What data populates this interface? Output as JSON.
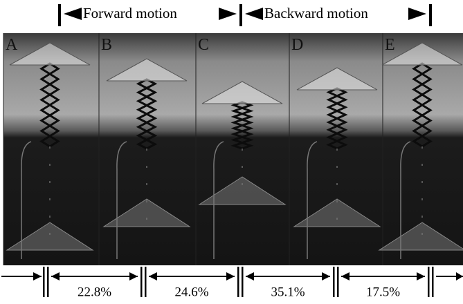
{
  "header": {
    "forward": "Forward  motion",
    "backward": "Backward motion"
  },
  "panels": [
    {
      "label": "A"
    },
    {
      "label": "B"
    },
    {
      "label": "C"
    },
    {
      "label": "D"
    },
    {
      "label": "E"
    }
  ],
  "intervals": [
    "22.8%",
    "24.6%",
    "35.1%",
    "17.5%"
  ]
}
